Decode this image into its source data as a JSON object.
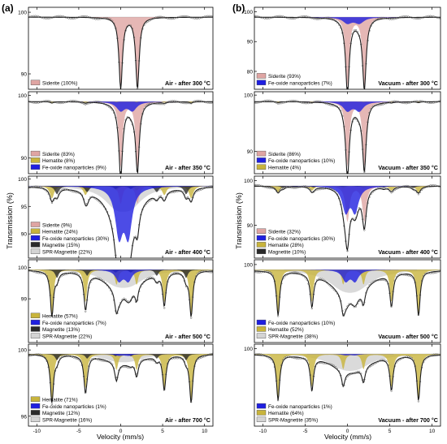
{
  "figure": {
    "panel_labels": [
      "(a)",
      "(b)"
    ],
    "ylabel": "Transmission (%)",
    "xlabel": "Velocity (mm/s)"
  },
  "colors": {
    "siderite": "#dfa5a3",
    "fe_oxide_nanoparticles": "#1f1fe0",
    "hematite": "#c8b43c",
    "magnetite": "#2a2a2a",
    "spr_magnetite": "#d4d4d4",
    "fit_line": "#1a1a1a",
    "raw_data": "#555555"
  },
  "chart_data": [
    {
      "type": "line",
      "panel": "a",
      "row": 1,
      "title": "Air - after 300 °C",
      "xlim": [
        -11,
        11
      ],
      "ylim": [
        87.5,
        100.8
      ],
      "x_ticks": [
        -10,
        -5,
        0,
        5,
        10
      ],
      "y_ticks": [
        100,
        90
      ],
      "legend": [
        {
          "component": "siderite",
          "label": "Siderite (100%)"
        }
      ],
      "series": [
        {
          "component": "siderite",
          "doublet": [
            0.0,
            2.0
          ],
          "width": 0.5,
          "depth": 11.5
        }
      ]
    },
    {
      "type": "line",
      "panel": "a",
      "row": 2,
      "title": "Air - after 350 °C",
      "xlim": [
        -11,
        11
      ],
      "ylim": [
        87.5,
        100.6
      ],
      "x_ticks": [
        -10,
        -5,
        0,
        5,
        10
      ],
      "y_ticks": [
        100,
        90
      ],
      "legend": [
        {
          "component": "siderite",
          "label": "Siderite (83%)"
        },
        {
          "component": "hematite",
          "label": "Hematite (8%)"
        },
        {
          "component": "fe_oxide_nanoparticles",
          "label": "Fe-oxide nanoparticles (9%)"
        }
      ],
      "series": [
        {
          "component": "siderite",
          "doublet": [
            0.0,
            2.0
          ],
          "width": 0.5,
          "depth": 10.5
        },
        {
          "component": "fe_oxide_nanoparticles",
          "doublet": [
            0.0,
            1.4
          ],
          "width": 1.2,
          "depth": 1.4
        },
        {
          "component": "hematite",
          "sextet": [
            -8.2,
            -4.2,
            -0.5,
            1.9,
            5.2,
            8.4
          ],
          "width": 0.4,
          "depth": 0.3
        }
      ]
    },
    {
      "type": "line",
      "panel": "a",
      "row": 3,
      "title": "Air - after 400 °C",
      "xlim": [
        -11,
        11
      ],
      "ylim": [
        85.6,
        100.5
      ],
      "x_ticks": [
        -10,
        -5,
        0,
        5,
        10
      ],
      "y_ticks": [
        100,
        95,
        90
      ],
      "legend": [
        {
          "component": "siderite",
          "label": "Siderite (9%)"
        },
        {
          "component": "hematite",
          "label": "Hematite (24%)"
        },
        {
          "component": "fe_oxide_nanoparticles",
          "label": "Fe-oxide nanoparticles (30%)"
        },
        {
          "component": "magnetite",
          "label": "Magnetite (15%)"
        },
        {
          "component": "spr_magnetite",
          "label": "SPR-Magnetite (22%)"
        }
      ],
      "series": [
        {
          "component": "spr_magnetite",
          "doublet": [
            -0.6,
            1.2
          ],
          "width": 3.4,
          "depth": 3.0
        },
        {
          "component": "siderite",
          "doublet": [
            0.0,
            2.0
          ],
          "width": 0.5,
          "depth": 3.2
        },
        {
          "component": "hematite",
          "sextet": [
            -8.2,
            -4.2,
            -0.5,
            1.9,
            5.2,
            8.4
          ],
          "width": 0.6,
          "depth": 3.0
        },
        {
          "component": "magnetite",
          "sextet": [
            -7.6,
            -4.0,
            -0.6,
            1.2,
            4.3,
            7.8
          ],
          "width": 0.6,
          "depth": 2.0
        },
        {
          "component": "fe_oxide_nanoparticles",
          "doublet": [
            -0.2,
            0.9
          ],
          "width": 1.1,
          "depth": 8.5
        }
      ]
    },
    {
      "type": "line",
      "panel": "a",
      "row": 4,
      "title": "Air - after 500 °C",
      "xlim": [
        -11,
        11
      ],
      "ylim": [
        97.6,
        100.25
      ],
      "x_ticks": [
        -10,
        -5,
        0,
        5,
        10
      ],
      "y_ticks": [
        100,
        99
      ],
      "legend": [
        {
          "component": "hematite",
          "label": "Hematite (57%)"
        },
        {
          "component": "fe_oxide_nanoparticles",
          "label": "Fe-oxide nanoparticles (7%)"
        },
        {
          "component": "magnetite",
          "label": "Magnetite (13%)"
        },
        {
          "component": "spr_magnetite",
          "label": "SPR-Magnetite (22%)"
        }
      ],
      "series": [
        {
          "component": "spr_magnetite",
          "doublet": [
            -0.6,
            1.2
          ],
          "width": 4.0,
          "depth": 0.35
        },
        {
          "component": "hematite",
          "sextet": [
            -8.2,
            -4.2,
            -0.5,
            1.9,
            5.2,
            8.4
          ],
          "width": 0.45,
          "depth": 1.9
        },
        {
          "component": "magnetite",
          "sextet": [
            -7.6,
            -4.0,
            -0.6,
            1.2,
            4.3,
            7.8
          ],
          "width": 0.5,
          "depth": 0.35
        },
        {
          "component": "fe_oxide_nanoparticles",
          "doublet": [
            -0.2,
            0.9
          ],
          "width": 1.0,
          "depth": 0.35
        }
      ]
    },
    {
      "type": "line",
      "panel": "a",
      "row": 5,
      "title": "Air - after 700 °C",
      "xlim": [
        -11,
        11
      ],
      "ylim": [
        95.4,
        100.35
      ],
      "x_ticks": [
        -10,
        -5,
        0,
        5,
        10
      ],
      "y_ticks": [
        100,
        96
      ],
      "legend": [
        {
          "component": "hematite",
          "label": "Hematite (71%)"
        },
        {
          "component": "fe_oxide_nanoparticles",
          "label": "Fe-oxide nanoparticles (1%)"
        },
        {
          "component": "magnetite",
          "label": "Magnetite (12%)"
        },
        {
          "component": "spr_magnetite",
          "label": "SPR-Magnetite (16%)"
        }
      ],
      "series": [
        {
          "component": "spr_magnetite",
          "doublet": [
            -0.6,
            1.2
          ],
          "width": 4.0,
          "depth": 0.3
        },
        {
          "component": "hematite",
          "sextet": [
            -8.2,
            -4.2,
            -0.5,
            1.9,
            5.2,
            8.4
          ],
          "width": 0.45,
          "depth": 3.8
        },
        {
          "component": "magnetite",
          "sextet": [
            -7.6,
            -4.0,
            -0.6,
            1.2,
            4.3,
            7.8
          ],
          "width": 0.5,
          "depth": 0.5
        },
        {
          "component": "fe_oxide_nanoparticles",
          "doublet": [
            -0.2,
            0.9
          ],
          "width": 1.0,
          "depth": 0.1
        }
      ]
    },
    {
      "type": "line",
      "panel": "b",
      "row": 1,
      "title": "Vacuum - after 300 °C",
      "xlim": [
        -11,
        11
      ],
      "ylim": [
        74.0,
        101.5
      ],
      "x_ticks": [
        -10,
        -5,
        0,
        5,
        10
      ],
      "y_ticks": [
        100,
        90,
        80
      ],
      "legend": [
        {
          "component": "siderite",
          "label": "Siderite (93%)"
        },
        {
          "component": "fe_oxide_nanoparticles",
          "label": "Fe-oxide nanoparticles (7%)"
        }
      ],
      "series": [
        {
          "component": "siderite",
          "doublet": [
            0.0,
            2.0
          ],
          "width": 0.5,
          "depth": 23.0
        },
        {
          "component": "fe_oxide_nanoparticles",
          "doublet": [
            0.0,
            1.4
          ],
          "width": 1.3,
          "depth": 2.0
        }
      ]
    },
    {
      "type": "line",
      "panel": "b",
      "row": 2,
      "title": "Vacuum - after 350 °C",
      "xlim": [
        -11,
        11
      ],
      "ylim": [
        86.0,
        100.6
      ],
      "x_ticks": [
        -10,
        -5,
        0,
        5,
        10
      ],
      "y_ticks": [
        100,
        90
      ],
      "legend": [
        {
          "component": "siderite",
          "label": "Siderite (86%)"
        },
        {
          "component": "fe_oxide_nanoparticles",
          "label": "Fe-oxide nanoparticles (10%)"
        },
        {
          "component": "hematite",
          "label": "Hematite (4%)"
        }
      ],
      "series": [
        {
          "component": "siderite",
          "doublet": [
            0.0,
            2.0
          ],
          "width": 0.5,
          "depth": 11.5
        },
        {
          "component": "fe_oxide_nanoparticles",
          "doublet": [
            0.0,
            1.4
          ],
          "width": 1.2,
          "depth": 1.6
        },
        {
          "component": "hematite",
          "sextet": [
            -8.2,
            -4.2,
            -0.5,
            1.9,
            5.2,
            8.4
          ],
          "width": 0.4,
          "depth": 0.2
        }
      ]
    },
    {
      "type": "line",
      "panel": "b",
      "row": 3,
      "title": "Vacuum - after 400 °C",
      "xlim": [
        -11,
        11
      ],
      "ylim": [
        82.6,
        101.0
      ],
      "x_ticks": [
        -10,
        -5,
        0,
        5,
        10
      ],
      "y_ticks": [
        100,
        90
      ],
      "legend": [
        {
          "component": "siderite",
          "label": "Siderite (32%)"
        },
        {
          "component": "fe_oxide_nanoparticles",
          "label": "Fe-oxide nanoparticles (30%)"
        },
        {
          "component": "hematite",
          "label": "Hematite (28%)"
        },
        {
          "component": "magnetite",
          "label": "Magnetite (10%)"
        }
      ],
      "series": [
        {
          "component": "siderite",
          "doublet": [
            0.0,
            2.0
          ],
          "width": 0.55,
          "depth": 8.0
        },
        {
          "component": "hematite",
          "sextet": [
            -8.2,
            -4.2,
            -0.5,
            1.9,
            5.2,
            8.4
          ],
          "width": 0.6,
          "depth": 1.9
        },
        {
          "component": "magnetite",
          "sextet": [
            -7.6,
            -4.0,
            -0.6,
            1.2,
            4.3,
            7.8
          ],
          "width": 0.6,
          "depth": 0.6
        },
        {
          "component": "fe_oxide_nanoparticles",
          "doublet": [
            -0.2,
            0.9
          ],
          "width": 1.0,
          "depth": 5.5
        }
      ]
    },
    {
      "type": "line",
      "panel": "b",
      "row": 4,
      "title": "Vacuum - after 500 °C",
      "xlim": [
        -11,
        11
      ],
      "ylim": [
        94.3,
        100.35
      ],
      "x_ticks": [
        -10,
        -5,
        0,
        5,
        10
      ],
      "y_ticks": [
        100
      ],
      "legend": [
        {
          "component": "fe_oxide_nanoparticles",
          "label": "Fe-oxide nanoparticles (10%)"
        },
        {
          "component": "hematite",
          "label": "Hematite (52%)"
        },
        {
          "component": "spr_magnetite",
          "label": "SPR-Magnetite (38%)"
        }
      ],
      "series": [
        {
          "component": "spr_magnetite",
          "doublet": [
            -0.6,
            1.2
          ],
          "width": 4.2,
          "depth": 1.0
        },
        {
          "component": "hematite",
          "sextet": [
            -8.2,
            -4.2,
            -0.5,
            1.9,
            5.2,
            8.4
          ],
          "width": 0.45,
          "depth": 4.3
        },
        {
          "component": "fe_oxide_nanoparticles",
          "doublet": [
            -0.2,
            0.9
          ],
          "width": 1.0,
          "depth": 0.8
        }
      ]
    },
    {
      "type": "line",
      "panel": "b",
      "row": 5,
      "title": "Vacuum - after 700 °C",
      "xlim": [
        -11,
        11
      ],
      "ylim": [
        93.8,
        100.35
      ],
      "x_ticks": [
        -10,
        -5,
        0,
        5,
        10
      ],
      "y_ticks": [
        100
      ],
      "legend": [
        {
          "component": "fe_oxide_nanoparticles",
          "label": "Fe-oxide nanoparticles (1%)"
        },
        {
          "component": "hematite",
          "label": "Hematite (64%)"
        },
        {
          "component": "spr_magnetite",
          "label": "SPR-Magnetite (35%)"
        }
      ],
      "series": [
        {
          "component": "spr_magnetite",
          "doublet": [
            -0.6,
            1.2
          ],
          "width": 4.2,
          "depth": 0.8
        },
        {
          "component": "hematite",
          "sextet": [
            -8.2,
            -4.2,
            -0.5,
            1.9,
            5.2,
            8.4
          ],
          "width": 0.45,
          "depth": 4.8
        },
        {
          "component": "fe_oxide_nanoparticles",
          "doublet": [
            -0.2,
            0.9
          ],
          "width": 1.0,
          "depth": 0.1
        }
      ]
    }
  ]
}
